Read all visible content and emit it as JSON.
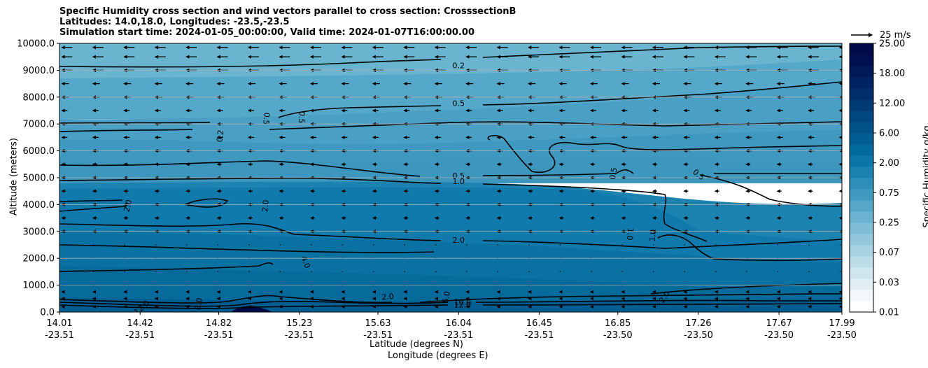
{
  "chart_data": {
    "type": "contour",
    "title_lines": [
      "Specific Humidity cross section and wind vectors parallel to cross section: CrosssectionB",
      "Latitudes: 14.0,18.0, Longitudes: -23.5,-23.5",
      "Simulation start time: 2024-01-05_00:00:00, Valid time: 2024-01-07T16:00:00.00"
    ],
    "ylabel": "Altitude (meters)",
    "xlabel_lat": "Latitude (degrees N)",
    "xlabel_lon": "Longitude (degrees E)",
    "ylim": [
      0,
      10000
    ],
    "y_ticks": [
      "0.0",
      "1000.0",
      "2000.0",
      "3000.0",
      "4000.0",
      "5000.0",
      "6000.0",
      "7000.0",
      "8000.0",
      "9000.0",
      "10000.0"
    ],
    "x_ticks_lat": [
      "14.01",
      "14.42",
      "14.82",
      "15.23",
      "15.63",
      "16.04",
      "16.45",
      "16.85",
      "17.26",
      "17.67",
      "17.99"
    ],
    "x_ticks_lon": [
      "-23.51",
      "-23.51",
      "-23.51",
      "-23.51",
      "-23.51",
      "-23.51",
      "-23.51",
      "-23.50",
      "-23.50",
      "-23.50",
      "-23.50"
    ],
    "colorbar": {
      "label": "Specific Humidity g/kg",
      "ticks": [
        "0.01",
        "0.03",
        "0.07",
        "0.25",
        "0.75",
        "2.00",
        "6.00",
        "12.00",
        "18.00",
        "25.00"
      ],
      "colors": [
        "#ffffff",
        "#f2f8fb",
        "#e1eff4",
        "#cfe6ee",
        "#bcdde8",
        "#a8d3e2",
        "#93c8dc",
        "#7fbdd5",
        "#6ab2cf",
        "#55a6c8",
        "#409ac0",
        "#2d8eb8",
        "#1b82b0",
        "#0b76a7",
        "#006a9d",
        "#005e93",
        "#005289",
        "#00467f",
        "#003a75",
        "#002f6a",
        "#002461",
        "#001a58",
        "#001050",
        "#000a48"
      ]
    },
    "contour_labels": [
      {
        "text": "0.2",
        "x": 16.04,
        "y": 9150,
        "angle": 0
      },
      {
        "text": "0.5",
        "x": 16.04,
        "y": 7750,
        "angle": 0
      },
      {
        "text": "0.5",
        "x": 16.04,
        "y": 5050,
        "angle": 0
      },
      {
        "text": "1.0",
        "x": 16.04,
        "y": 4850,
        "angle": 0
      },
      {
        "text": "2.0",
        "x": 16.04,
        "y": 2650,
        "angle": 0
      },
      {
        "text": "0.2",
        "x": 14.83,
        "y": 6550,
        "angle": -85
      },
      {
        "text": "0.5",
        "x": 15.06,
        "y": 7200,
        "angle": 95
      },
      {
        "text": "0.5",
        "x": 15.24,
        "y": 7250,
        "angle": 95
      },
      {
        "text": "0.5",
        "x": 16.83,
        "y": 5150,
        "angle": -80
      },
      {
        "text": "0.5",
        "x": 17.26,
        "y": 5100,
        "angle": 40
      },
      {
        "text": "2.0",
        "x": 14.36,
        "y": 3950,
        "angle": -75
      },
      {
        "text": "2.0",
        "x": 15.06,
        "y": 3950,
        "angle": -85
      },
      {
        "text": "1.0",
        "x": 16.91,
        "y": 2900,
        "angle": 95
      },
      {
        "text": "1.0",
        "x": 17.03,
        "y": 2850,
        "angle": -85
      },
      {
        "text": "4.0",
        "x": 15.26,
        "y": 1850,
        "angle": 70
      },
      {
        "text": "2.0",
        "x": 15.68,
        "y": 550,
        "angle": -5
      },
      {
        "text": "6.0",
        "x": 15.98,
        "y": 550,
        "angle": -80
      },
      {
        "text": "8.0",
        "x": 14.72,
        "y": 300,
        "angle": -80
      },
      {
        "text": "2.0",
        "x": 17.09,
        "y": 550,
        "angle": -55
      },
      {
        "text": "10.0",
        "x": 16.06,
        "y": 350,
        "angle": 0
      },
      {
        "text": "12.0",
        "x": 16.06,
        "y": 250,
        "angle": 0
      },
      {
        "text": "12.0",
        "x": 14.43,
        "y": 150,
        "angle": -40
      }
    ],
    "quiver_key": {
      "label": "25 m/s",
      "speed": 25
    },
    "wind_levels_m": [
      200,
      500,
      750,
      1000,
      1500,
      2000,
      2500,
      3000,
      3500,
      4000,
      4500,
      5000,
      5500,
      6000,
      6500,
      7000,
      7500,
      8000,
      8500,
      9000,
      9500,
      9850
    ]
  }
}
